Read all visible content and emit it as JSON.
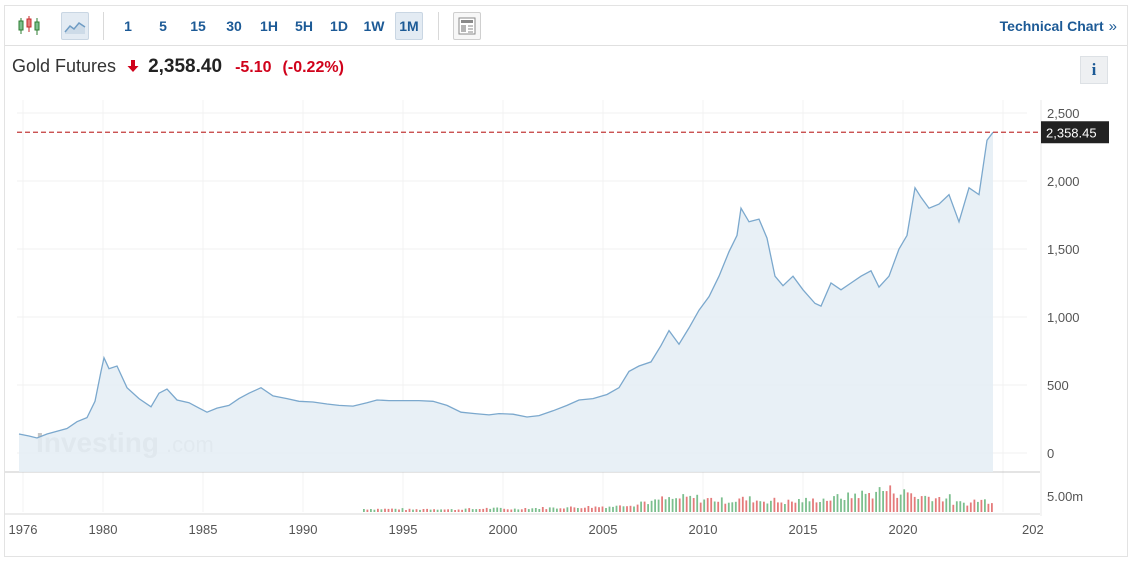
{
  "toolbar": {
    "intervals": [
      "1",
      "5",
      "15",
      "30",
      "1H",
      "5H",
      "1D",
      "1W",
      "1M"
    ],
    "active_interval": "1M",
    "technical_chart_label": "Technical Chart",
    "technical_chart_chevron": "»",
    "icons": [
      "candlestick-icon",
      "area-chart-icon",
      "layout-icon"
    ]
  },
  "instrument": {
    "name": "Gold Futures",
    "price": "2,358.40",
    "change": "-5.10",
    "change_pct": "(-0.22%)",
    "direction_icon": "arrow-down-icon",
    "info_label": "i"
  },
  "watermark": {
    "brand": "Investing",
    "suffix": ".com"
  },
  "colors": {
    "line": "#7ba8cd",
    "area": "#e4edf5",
    "price_line": "#c23b3b",
    "price_tag_bg": "#222222",
    "up_volume": "#7cbf8e",
    "down_volume": "#e47b7b",
    "accent": "#1c5a96",
    "negative": "#d0021b"
  },
  "chart_data": {
    "type": "area",
    "title": "",
    "xlabel": "",
    "ylabel": "",
    "x_ticks": [
      "1976",
      "1980",
      "1985",
      "1990",
      "1995",
      "2000",
      "2005",
      "2010",
      "2015",
      "2020",
      "202"
    ],
    "y_ticks": [
      "2,500",
      "2,000",
      "1,500",
      "1,000",
      "500",
      "0"
    ],
    "ylim": [
      0,
      2600
    ],
    "xlim": [
      1975.7,
      2026.2
    ],
    "last_price_label": "2,358.45",
    "last_price_value": 2358.45,
    "volume_label": "5.00m",
    "grid": true,
    "series": [
      {
        "x": [
          1975.8,
          1976.3,
          1976.7,
          1977.2,
          1977.7,
          1978.2,
          1978.7,
          1979.2,
          1979.6,
          1979.9,
          1980.05,
          1980.3,
          1980.7,
          1981.2,
          1981.8,
          1982.4,
          1982.8,
          1983.2,
          1983.7,
          1984.3,
          1984.8,
          1985.2,
          1985.7,
          1986.3,
          1986.8,
          1987.3,
          1987.9,
          1988.5,
          1989.2,
          1989.8,
          1990.5,
          1991.2,
          1991.8,
          1992.5,
          1993.2,
          1993.7,
          1994.3,
          1995.0,
          1995.8,
          1996.5,
          1997.2,
          1997.9,
          1998.6,
          1999.3,
          1999.8,
          2000.5,
          2001.2,
          2001.8,
          2002.5,
          2003.2,
          2003.8,
          2004.5,
          2005.2,
          2005.8,
          2006.3,
          2006.8,
          2007.4,
          2007.9,
          2008.3,
          2008.8,
          2009.3,
          2009.8,
          2010.3,
          2010.8,
          2011.3,
          2011.7,
          2011.9,
          2012.3,
          2012.8,
          2013.2,
          2013.6,
          2014.0,
          2014.5,
          2015.0,
          2015.6,
          2015.9,
          2016.4,
          2016.9,
          2017.4,
          2017.9,
          2018.4,
          2018.8,
          2019.3,
          2019.8,
          2020.2,
          2020.6,
          2020.9,
          2021.3,
          2021.8,
          2022.3,
          2022.8,
          2023.3,
          2023.8,
          2024.2,
          2024.5
        ],
        "values": [
          140,
          125,
          110,
          140,
          160,
          180,
          230,
          260,
          380,
          600,
          700,
          620,
          640,
          480,
          400,
          340,
          440,
          470,
          390,
          370,
          330,
          300,
          330,
          350,
          400,
          440,
          480,
          420,
          400,
          380,
          375,
          360,
          350,
          345,
          370,
          390,
          385,
          385,
          385,
          380,
          350,
          300,
          290,
          280,
          290,
          285,
          265,
          275,
          310,
          350,
          390,
          400,
          430,
          480,
          600,
          640,
          670,
          790,
          900,
          800,
          920,
          1050,
          1150,
          1300,
          1480,
          1600,
          1800,
          1700,
          1720,
          1580,
          1300,
          1230,
          1300,
          1200,
          1100,
          1080,
          1250,
          1200,
          1250,
          1300,
          1340,
          1220,
          1300,
          1500,
          1600,
          1950,
          1880,
          1800,
          1830,
          1900,
          1700,
          1950,
          1900,
          2300,
          2358
        ],
        "name": ""
      }
    ],
    "volume": {
      "x_start": 1993.0,
      "x_end": 2024.4,
      "description_levels": "relative volume levels 0-1 by period",
      "levels": [
        0.12,
        0.12,
        0.1,
        0.12,
        0.1,
        0.12,
        0.14,
        0.12,
        0.15,
        0.16,
        0.18,
        0.2,
        0.22,
        0.3,
        0.4,
        0.5,
        0.55,
        0.5,
        0.45,
        0.5,
        0.45,
        0.4,
        0.45,
        0.5,
        0.6,
        0.7,
        0.85,
        0.75,
        0.6,
        0.55,
        0.35,
        0.45
      ]
    }
  }
}
